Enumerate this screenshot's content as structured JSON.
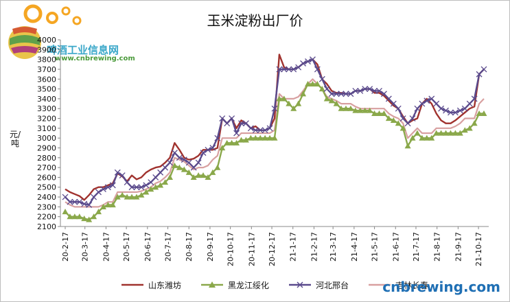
{
  "title": "玉米淀粉出厂价",
  "logo": {
    "name": "啤酒工业信息网",
    "url": "www.cnbrewing.com"
  },
  "brand": "cnbrewing.com",
  "chart_data": {
    "type": "line",
    "title": "玉米淀粉出厂价",
    "ylabel": "元/吨",
    "xlabel": "",
    "ylim": [
      2100,
      4000
    ],
    "yticks": [
      2100,
      2200,
      2300,
      2400,
      2500,
      2600,
      2700,
      2800,
      2900,
      3000,
      3100,
      3200,
      3300,
      3400,
      3500,
      3600,
      3700,
      3800,
      3900,
      4000
    ],
    "xticks": [
      "20-2-17",
      "20-3-17",
      "20-4-17",
      "20-5-17",
      "20-6-17",
      "20-7-17",
      "20-8-17",
      "20-9-17",
      "20-10-17",
      "20-11-17",
      "20-12-17",
      "21-1-17",
      "21-2-17",
      "21-3-17",
      "21-4-17",
      "21-5-17",
      "21-6-17",
      "21-7-17",
      "21-8-17",
      "21-9-17",
      "21-10-17"
    ],
    "grid": false,
    "legend_position": "bottom",
    "x": [
      "2020-02-17",
      "2020-02-24",
      "2020-03-02",
      "2020-03-09",
      "2020-03-16",
      "2020-03-23",
      "2020-03-30",
      "2020-04-06",
      "2020-04-13",
      "2020-04-20",
      "2020-04-27",
      "2020-05-04",
      "2020-05-11",
      "2020-05-18",
      "2020-05-25",
      "2020-06-01",
      "2020-06-08",
      "2020-06-15",
      "2020-06-22",
      "2020-06-29",
      "2020-07-06",
      "2020-07-13",
      "2020-07-20",
      "2020-07-27",
      "2020-08-03",
      "2020-08-10",
      "2020-08-17",
      "2020-08-24",
      "2020-08-31",
      "2020-09-07",
      "2020-09-14",
      "2020-09-21",
      "2020-09-28",
      "2020-10-05",
      "2020-10-12",
      "2020-10-19",
      "2020-10-26",
      "2020-11-02",
      "2020-11-09",
      "2020-11-16",
      "2020-11-23",
      "2020-11-30",
      "2020-12-07",
      "2020-12-14",
      "2020-12-21",
      "2020-12-28",
      "2021-01-04",
      "2021-01-11",
      "2021-01-18",
      "2021-01-25",
      "2021-02-01",
      "2021-02-08",
      "2021-02-15",
      "2021-02-22",
      "2021-03-01",
      "2021-03-08",
      "2021-03-15",
      "2021-03-22",
      "2021-03-29",
      "2021-04-05",
      "2021-04-12",
      "2021-04-19",
      "2021-04-26",
      "2021-05-03",
      "2021-05-10",
      "2021-05-17",
      "2021-05-24",
      "2021-05-31",
      "2021-06-07",
      "2021-06-14",
      "2021-06-21",
      "2021-06-28",
      "2021-07-05",
      "2021-07-12",
      "2021-07-19",
      "2021-07-26",
      "2021-08-02",
      "2021-08-09",
      "2021-08-16",
      "2021-08-23",
      "2021-08-30",
      "2021-09-06",
      "2021-09-13",
      "2021-09-20",
      "2021-09-27",
      "2021-10-04",
      "2021-10-11",
      "2021-10-18",
      "2021-10-25"
    ],
    "series": [
      {
        "name": "山东潍坊",
        "color": "#a0322e",
        "marker": "none",
        "values": [
          2480,
          2450,
          2430,
          2410,
          2370,
          2420,
          2480,
          2500,
          2500,
          2520,
          2540,
          2640,
          2610,
          2560,
          2620,
          2580,
          2600,
          2650,
          2680,
          2700,
          2710,
          2750,
          2800,
          2950,
          2880,
          2800,
          2780,
          2790,
          2820,
          2880,
          2880,
          2880,
          2900,
          3200,
          3150,
          3200,
          3100,
          3180,
          3150,
          3100,
          3120,
          3080,
          3080,
          3100,
          3200,
          3850,
          3720,
          3700,
          3700,
          3720,
          3760,
          3780,
          3800,
          3750,
          3600,
          3550,
          3480,
          3460,
          3460,
          3450,
          3450,
          3480,
          3480,
          3500,
          3500,
          3460,
          3460,
          3430,
          3380,
          3330,
          3300,
          3220,
          3150,
          3180,
          3200,
          3350,
          3400,
          3350,
          3250,
          3180,
          3150,
          3150,
          3180,
          3220,
          3260,
          3300,
          3320,
          3650,
          3700
        ]
      },
      {
        "name": "黑龙江绥化",
        "color": "#8aa84a",
        "marker": "triangle",
        "values": [
          2250,
          2200,
          2200,
          2200,
          2180,
          2170,
          2200,
          2250,
          2300,
          2320,
          2320,
          2400,
          2420,
          2400,
          2400,
          2400,
          2420,
          2450,
          2480,
          2500,
          2520,
          2550,
          2600,
          2720,
          2700,
          2680,
          2650,
          2600,
          2620,
          2620,
          2600,
          2650,
          2700,
          2900,
          2950,
          2950,
          2950,
          2980,
          2980,
          3000,
          3000,
          3000,
          3000,
          3000,
          3000,
          3400,
          3400,
          3350,
          3300,
          3350,
          3450,
          3550,
          3550,
          3550,
          3500,
          3400,
          3380,
          3350,
          3300,
          3300,
          3300,
          3280,
          3280,
          3280,
          3280,
          3250,
          3250,
          3250,
          3200,
          3180,
          3150,
          3100,
          2920,
          3000,
          3050,
          3000,
          3000,
          3000,
          3050,
          3050,
          3050,
          3050,
          3050,
          3050,
          3080,
          3100,
          3150,
          3250,
          3250
        ]
      },
      {
        "name": "河北邢台",
        "color": "#5a4a8c",
        "marker": "cross",
        "values": [
          2400,
          2350,
          2350,
          2350,
          2330,
          2320,
          2400,
          2450,
          2480,
          2500,
          2520,
          2650,
          2620,
          2550,
          2500,
          2500,
          2500,
          2520,
          2550,
          2600,
          2650,
          2700,
          2750,
          2850,
          2800,
          2780,
          2750,
          2700,
          2750,
          2850,
          2880,
          2900,
          3000,
          3200,
          3150,
          3200,
          3050,
          3150,
          3150,
          3100,
          3080,
          3080,
          3080,
          3100,
          3300,
          3700,
          3700,
          3700,
          3700,
          3720,
          3760,
          3780,
          3800,
          3700,
          3600,
          3500,
          3450,
          3450,
          3450,
          3450,
          3450,
          3480,
          3480,
          3500,
          3500,
          3480,
          3480,
          3450,
          3400,
          3350,
          3300,
          3200,
          3150,
          3200,
          3300,
          3350,
          3380,
          3400,
          3350,
          3300,
          3280,
          3260,
          3260,
          3280,
          3300,
          3350,
          3400,
          3650,
          3700
        ]
      },
      {
        "name": "吉林长春",
        "color": "#d8a0a0",
        "marker": "none",
        "values": [
          2350,
          2320,
          2300,
          2300,
          2300,
          2300,
          2300,
          2300,
          2320,
          2350,
          2350,
          2450,
          2450,
          2450,
          2450,
          2450,
          2460,
          2480,
          2500,
          2540,
          2560,
          2600,
          2650,
          2800,
          2780,
          2760,
          2720,
          2680,
          2700,
          2700,
          2720,
          2780,
          2820,
          3000,
          3000,
          3000,
          3000,
          3050,
          3050,
          3050,
          3050,
          3050,
          3050,
          3050,
          3080,
          3450,
          3400,
          3400,
          3400,
          3420,
          3480,
          3550,
          3600,
          3550,
          3500,
          3420,
          3400,
          3380,
          3350,
          3350,
          3350,
          3320,
          3300,
          3300,
          3300,
          3300,
          3300,
          3300,
          3250,
          3220,
          3200,
          3150,
          3000,
          3050,
          3100,
          3050,
          3050,
          3050,
          3100,
          3100,
          3100,
          3100,
          3120,
          3150,
          3200,
          3200,
          3200,
          3350,
          3400
        ]
      }
    ]
  }
}
